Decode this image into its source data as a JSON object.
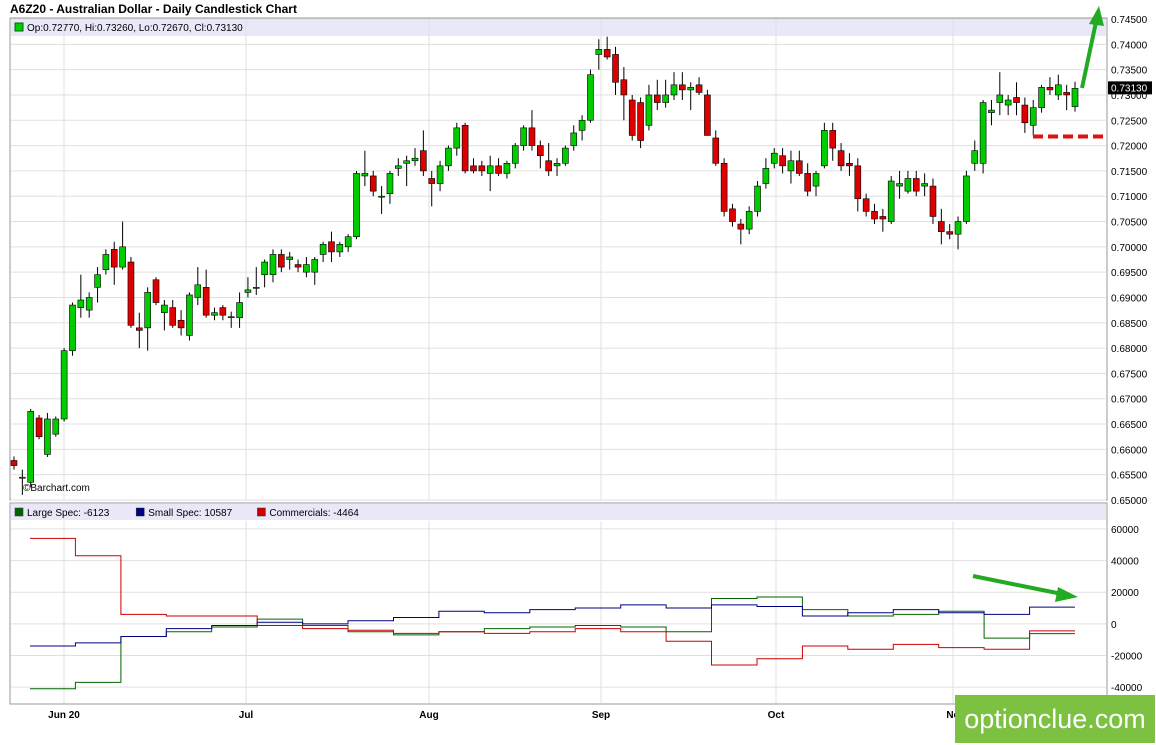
{
  "title": "A6Z20 - Australian Dollar - Daily Candlestick Chart",
  "ohlc_text": "Op:0.72770, Hi:0.73260, Lo:0.72670, Cl:0.73130",
  "last_price_label": "0.73130",
  "watermark": "©Barchart.com",
  "brand": "optionclue.com",
  "colors": {
    "up": "#00cc00",
    "down": "#dd0000",
    "large": "#006400",
    "small": "#000080",
    "commercials": "#cc0000",
    "grid": "#e0e0e0",
    "arrow": "#22aa22",
    "level": "#dd1111"
  },
  "chart_data": [
    {
      "type": "candlestick",
      "title": "A6Z20 - Australian Dollar - Daily Candlestick Chart",
      "ylim": [
        0.65,
        0.745
      ],
      "y_ticks": [
        "0.65000",
        "0.65500",
        "0.66000",
        "0.66500",
        "0.67000",
        "0.67500",
        "0.68000",
        "0.68500",
        "0.69000",
        "0.69500",
        "0.70000",
        "0.70500",
        "0.71000",
        "0.71500",
        "0.72000",
        "0.72500",
        "0.73000",
        "0.73500",
        "0.74000",
        "0.74500"
      ],
      "x_ticks": [
        "Jun 20",
        "Jul",
        "Aug",
        "Sep",
        "Oct",
        "No"
      ],
      "grid": true,
      "last_close": 0.7313,
      "annotations": [
        {
          "type": "arrow-up",
          "color": "green"
        },
        {
          "type": "horizontal-dashed-level",
          "value": 0.7218,
          "color": "red"
        }
      ],
      "candles": [
        {
          "o": 0.6578,
          "h": 0.6586,
          "l": 0.656,
          "c": 0.6568
        },
        {
          "o": 0.6545,
          "h": 0.656,
          "l": 0.651,
          "c": 0.6545
        },
        {
          "o": 0.6535,
          "h": 0.668,
          "l": 0.6525,
          "c": 0.6675
        },
        {
          "o": 0.6662,
          "h": 0.6668,
          "l": 0.662,
          "c": 0.6625
        },
        {
          "o": 0.659,
          "h": 0.6672,
          "l": 0.6585,
          "c": 0.666
        },
        {
          "o": 0.663,
          "h": 0.6665,
          "l": 0.6625,
          "c": 0.666
        },
        {
          "o": 0.666,
          "h": 0.68,
          "l": 0.6655,
          "c": 0.6795
        },
        {
          "o": 0.6795,
          "h": 0.689,
          "l": 0.6785,
          "c": 0.6885
        },
        {
          "o": 0.688,
          "h": 0.6945,
          "l": 0.686,
          "c": 0.6895
        },
        {
          "o": 0.6875,
          "h": 0.691,
          "l": 0.686,
          "c": 0.69
        },
        {
          "o": 0.692,
          "h": 0.696,
          "l": 0.689,
          "c": 0.6945
        },
        {
          "o": 0.6955,
          "h": 0.6995,
          "l": 0.6945,
          "c": 0.6985
        },
        {
          "o": 0.6995,
          "h": 0.701,
          "l": 0.6925,
          "c": 0.696
        },
        {
          "o": 0.696,
          "h": 0.705,
          "l": 0.6955,
          "c": 0.7
        },
        {
          "o": 0.697,
          "h": 0.698,
          "l": 0.684,
          "c": 0.6845
        },
        {
          "o": 0.684,
          "h": 0.687,
          "l": 0.68,
          "c": 0.6835
        },
        {
          "o": 0.684,
          "h": 0.692,
          "l": 0.6795,
          "c": 0.691
        },
        {
          "o": 0.6935,
          "h": 0.694,
          "l": 0.6885,
          "c": 0.689
        },
        {
          "o": 0.687,
          "h": 0.6895,
          "l": 0.6835,
          "c": 0.6885
        },
        {
          "o": 0.688,
          "h": 0.6895,
          "l": 0.684,
          "c": 0.6845
        },
        {
          "o": 0.6855,
          "h": 0.6875,
          "l": 0.6825,
          "c": 0.684
        },
        {
          "o": 0.6825,
          "h": 0.691,
          "l": 0.6815,
          "c": 0.6905
        },
        {
          "o": 0.69,
          "h": 0.696,
          "l": 0.6885,
          "c": 0.6925
        },
        {
          "o": 0.692,
          "h": 0.6955,
          "l": 0.686,
          "c": 0.6865
        },
        {
          "o": 0.6865,
          "h": 0.688,
          "l": 0.6855,
          "c": 0.687
        },
        {
          "o": 0.688,
          "h": 0.6885,
          "l": 0.6855,
          "c": 0.6865
        },
        {
          "o": 0.6862,
          "h": 0.6872,
          "l": 0.684,
          "c": 0.6862
        },
        {
          "o": 0.686,
          "h": 0.691,
          "l": 0.684,
          "c": 0.689
        },
        {
          "o": 0.691,
          "h": 0.694,
          "l": 0.69,
          "c": 0.6915
        },
        {
          "o": 0.692,
          "h": 0.696,
          "l": 0.6905,
          "c": 0.692
        },
        {
          "o": 0.6945,
          "h": 0.6975,
          "l": 0.692,
          "c": 0.697
        },
        {
          "o": 0.6945,
          "h": 0.6995,
          "l": 0.693,
          "c": 0.6985
        },
        {
          "o": 0.6985,
          "h": 0.6995,
          "l": 0.695,
          "c": 0.696
        },
        {
          "o": 0.6975,
          "h": 0.699,
          "l": 0.6955,
          "c": 0.698
        },
        {
          "o": 0.6965,
          "h": 0.6975,
          "l": 0.695,
          "c": 0.696
        },
        {
          "o": 0.695,
          "h": 0.698,
          "l": 0.694,
          "c": 0.6965
        },
        {
          "o": 0.695,
          "h": 0.698,
          "l": 0.6925,
          "c": 0.6975
        },
        {
          "o": 0.6985,
          "h": 0.701,
          "l": 0.697,
          "c": 0.7005
        },
        {
          "o": 0.701,
          "h": 0.703,
          "l": 0.697,
          "c": 0.699
        },
        {
          "o": 0.699,
          "h": 0.701,
          "l": 0.698,
          "c": 0.7005
        },
        {
          "o": 0.7,
          "h": 0.7025,
          "l": 0.699,
          "c": 0.702
        },
        {
          "o": 0.702,
          "h": 0.715,
          "l": 0.7015,
          "c": 0.7145
        },
        {
          "o": 0.714,
          "h": 0.719,
          "l": 0.712,
          "c": 0.7145
        },
        {
          "o": 0.714,
          "h": 0.715,
          "l": 0.71,
          "c": 0.711
        },
        {
          "o": 0.71,
          "h": 0.712,
          "l": 0.7065,
          "c": 0.71
        },
        {
          "o": 0.7105,
          "h": 0.715,
          "l": 0.7085,
          "c": 0.7145
        },
        {
          "o": 0.7155,
          "h": 0.7175,
          "l": 0.714,
          "c": 0.716
        },
        {
          "o": 0.7165,
          "h": 0.718,
          "l": 0.712,
          "c": 0.717
        },
        {
          "o": 0.717,
          "h": 0.7195,
          "l": 0.716,
          "c": 0.7175
        },
        {
          "o": 0.719,
          "h": 0.723,
          "l": 0.714,
          "c": 0.715
        },
        {
          "o": 0.7135,
          "h": 0.715,
          "l": 0.708,
          "c": 0.7125
        },
        {
          "o": 0.7125,
          "h": 0.717,
          "l": 0.711,
          "c": 0.716
        },
        {
          "o": 0.716,
          "h": 0.72,
          "l": 0.715,
          "c": 0.7195
        },
        {
          "o": 0.7195,
          "h": 0.7245,
          "l": 0.718,
          "c": 0.7235
        },
        {
          "o": 0.724,
          "h": 0.7245,
          "l": 0.7145,
          "c": 0.715
        },
        {
          "o": 0.716,
          "h": 0.7175,
          "l": 0.7145,
          "c": 0.715
        },
        {
          "o": 0.716,
          "h": 0.717,
          "l": 0.714,
          "c": 0.715
        },
        {
          "o": 0.7145,
          "h": 0.718,
          "l": 0.711,
          "c": 0.716
        },
        {
          "o": 0.716,
          "h": 0.7175,
          "l": 0.714,
          "c": 0.7145
        },
        {
          "o": 0.7145,
          "h": 0.717,
          "l": 0.7135,
          "c": 0.7165
        },
        {
          "o": 0.7165,
          "h": 0.7205,
          "l": 0.7155,
          "c": 0.72
        },
        {
          "o": 0.72,
          "h": 0.724,
          "l": 0.719,
          "c": 0.7235
        },
        {
          "o": 0.7235,
          "h": 0.727,
          "l": 0.719,
          "c": 0.72
        },
        {
          "o": 0.72,
          "h": 0.721,
          "l": 0.7155,
          "c": 0.718
        },
        {
          "o": 0.717,
          "h": 0.7205,
          "l": 0.714,
          "c": 0.715
        },
        {
          "o": 0.716,
          "h": 0.7175,
          "l": 0.714,
          "c": 0.7165
        },
        {
          "o": 0.7165,
          "h": 0.72,
          "l": 0.716,
          "c": 0.7195
        },
        {
          "o": 0.72,
          "h": 0.724,
          "l": 0.719,
          "c": 0.7225
        },
        {
          "o": 0.723,
          "h": 0.726,
          "l": 0.721,
          "c": 0.725
        },
        {
          "o": 0.725,
          "h": 0.735,
          "l": 0.7245,
          "c": 0.734
        },
        {
          "o": 0.738,
          "h": 0.741,
          "l": 0.735,
          "c": 0.739
        },
        {
          "o": 0.739,
          "h": 0.7415,
          "l": 0.737,
          "c": 0.7375
        },
        {
          "o": 0.738,
          "h": 0.7395,
          "l": 0.73,
          "c": 0.7325
        },
        {
          "o": 0.733,
          "h": 0.7355,
          "l": 0.725,
          "c": 0.73
        },
        {
          "o": 0.729,
          "h": 0.73,
          "l": 0.721,
          "c": 0.722
        },
        {
          "o": 0.7285,
          "h": 0.7295,
          "l": 0.7195,
          "c": 0.721
        },
        {
          "o": 0.724,
          "h": 0.732,
          "l": 0.723,
          "c": 0.73
        },
        {
          "o": 0.73,
          "h": 0.733,
          "l": 0.727,
          "c": 0.7285
        },
        {
          "o": 0.7285,
          "h": 0.733,
          "l": 0.7275,
          "c": 0.73
        },
        {
          "o": 0.73,
          "h": 0.7345,
          "l": 0.729,
          "c": 0.732
        },
        {
          "o": 0.732,
          "h": 0.7345,
          "l": 0.729,
          "c": 0.731
        },
        {
          "o": 0.731,
          "h": 0.7325,
          "l": 0.727,
          "c": 0.7315
        },
        {
          "o": 0.732,
          "h": 0.7335,
          "l": 0.73,
          "c": 0.7305
        },
        {
          "o": 0.73,
          "h": 0.731,
          "l": 0.722,
          "c": 0.722
        },
        {
          "o": 0.7215,
          "h": 0.723,
          "l": 0.716,
          "c": 0.7165
        },
        {
          "o": 0.7165,
          "h": 0.7175,
          "l": 0.706,
          "c": 0.707
        },
        {
          "o": 0.7075,
          "h": 0.7085,
          "l": 0.704,
          "c": 0.705
        },
        {
          "o": 0.7045,
          "h": 0.7055,
          "l": 0.7005,
          "c": 0.7035
        },
        {
          "o": 0.7035,
          "h": 0.708,
          "l": 0.7025,
          "c": 0.707
        },
        {
          "o": 0.707,
          "h": 0.713,
          "l": 0.706,
          "c": 0.712
        },
        {
          "o": 0.7125,
          "h": 0.7175,
          "l": 0.7115,
          "c": 0.7155
        },
        {
          "o": 0.7165,
          "h": 0.7195,
          "l": 0.7155,
          "c": 0.7185
        },
        {
          "o": 0.718,
          "h": 0.7195,
          "l": 0.7145,
          "c": 0.716
        },
        {
          "o": 0.715,
          "h": 0.719,
          "l": 0.7125,
          "c": 0.717
        },
        {
          "o": 0.717,
          "h": 0.719,
          "l": 0.714,
          "c": 0.7145
        },
        {
          "o": 0.7145,
          "h": 0.7165,
          "l": 0.71,
          "c": 0.711
        },
        {
          "o": 0.712,
          "h": 0.715,
          "l": 0.71,
          "c": 0.7145
        },
        {
          "o": 0.716,
          "h": 0.7245,
          "l": 0.7155,
          "c": 0.723
        },
        {
          "o": 0.723,
          "h": 0.7245,
          "l": 0.717,
          "c": 0.7195
        },
        {
          "o": 0.719,
          "h": 0.7205,
          "l": 0.715,
          "c": 0.716
        },
        {
          "o": 0.7165,
          "h": 0.7185,
          "l": 0.714,
          "c": 0.716
        },
        {
          "o": 0.716,
          "h": 0.7175,
          "l": 0.707,
          "c": 0.7095
        },
        {
          "o": 0.7095,
          "h": 0.7105,
          "l": 0.706,
          "c": 0.707
        },
        {
          "o": 0.707,
          "h": 0.7085,
          "l": 0.7045,
          "c": 0.7055
        },
        {
          "o": 0.706,
          "h": 0.7075,
          "l": 0.703,
          "c": 0.7055
        },
        {
          "o": 0.705,
          "h": 0.714,
          "l": 0.7045,
          "c": 0.713
        },
        {
          "o": 0.712,
          "h": 0.715,
          "l": 0.7095,
          "c": 0.7125
        },
        {
          "o": 0.711,
          "h": 0.715,
          "l": 0.7105,
          "c": 0.7135
        },
        {
          "o": 0.7135,
          "h": 0.715,
          "l": 0.71,
          "c": 0.711
        },
        {
          "o": 0.712,
          "h": 0.7145,
          "l": 0.71,
          "c": 0.7125
        },
        {
          "o": 0.712,
          "h": 0.7135,
          "l": 0.7045,
          "c": 0.706
        },
        {
          "o": 0.705,
          "h": 0.7075,
          "l": 0.7005,
          "c": 0.703
        },
        {
          "o": 0.703,
          "h": 0.7045,
          "l": 0.7015,
          "c": 0.7025
        },
        {
          "o": 0.7025,
          "h": 0.706,
          "l": 0.6995,
          "c": 0.705
        },
        {
          "o": 0.705,
          "h": 0.715,
          "l": 0.7045,
          "c": 0.714
        },
        {
          "o": 0.7165,
          "h": 0.721,
          "l": 0.715,
          "c": 0.719
        },
        {
          "o": 0.7165,
          "h": 0.729,
          "l": 0.7145,
          "c": 0.7285
        },
        {
          "o": 0.7265,
          "h": 0.729,
          "l": 0.724,
          "c": 0.727
        },
        {
          "o": 0.7285,
          "h": 0.7345,
          "l": 0.726,
          "c": 0.73
        },
        {
          "o": 0.728,
          "h": 0.73,
          "l": 0.726,
          "c": 0.729
        },
        {
          "o": 0.7295,
          "h": 0.7325,
          "l": 0.726,
          "c": 0.7285
        },
        {
          "o": 0.728,
          "h": 0.7295,
          "l": 0.7225,
          "c": 0.7245
        },
        {
          "o": 0.724,
          "h": 0.729,
          "l": 0.722,
          "c": 0.7275
        },
        {
          "o": 0.7275,
          "h": 0.732,
          "l": 0.7265,
          "c": 0.7315
        },
        {
          "o": 0.7315,
          "h": 0.7335,
          "l": 0.73,
          "c": 0.731
        },
        {
          "o": 0.73,
          "h": 0.734,
          "l": 0.729,
          "c": 0.732
        },
        {
          "o": 0.7305,
          "h": 0.732,
          "l": 0.727,
          "c": 0.73
        },
        {
          "o": 0.7277,
          "h": 0.7326,
          "l": 0.7267,
          "c": 0.7313
        }
      ]
    },
    {
      "type": "line",
      "subtype": "step",
      "ylim": [
        -50000,
        65000
      ],
      "y_ticks": [
        "-40000",
        "-20000",
        "0",
        "20000",
        "40000",
        "60000"
      ],
      "x_ticks": [
        "Jun 20",
        "Jul",
        "Aug",
        "Sep",
        "Oct",
        "No"
      ],
      "grid": true,
      "annotations": [
        {
          "type": "arrow-down-right",
          "color": "green"
        }
      ],
      "series": [
        {
          "name": "Large Spec",
          "legend": "Large Spec: -6123",
          "color": "#006400",
          "values": [
            -41000,
            -37000,
            -8000,
            -5000,
            -2000,
            3000,
            -1000,
            -5000,
            -7000,
            -5000,
            -3000,
            -2000,
            -1000,
            -2000,
            -5000,
            16000,
            17000,
            9000,
            5000,
            6000,
            8000,
            -9000,
            -6123
          ]
        },
        {
          "name": "Small Spec",
          "legend": "Small Spec: 10587",
          "color": "#000080",
          "values": [
            -14000,
            -12000,
            -8000,
            -3000,
            -1000,
            1000,
            0,
            2000,
            4000,
            8000,
            7000,
            9000,
            10000,
            12000,
            10000,
            12000,
            11000,
            5000,
            7000,
            9000,
            7000,
            6000,
            10587
          ]
        },
        {
          "name": "Commercials",
          "legend": "Commercials: -4464",
          "color": "#cc0000",
          "values": [
            54000,
            43000,
            6000,
            5000,
            5000,
            -1000,
            -3000,
            -4000,
            -6000,
            -5000,
            -6000,
            -5000,
            -3000,
            -5000,
            -11000,
            -26000,
            -22000,
            -14000,
            -16000,
            -13000,
            -15000,
            -16000,
            -4464
          ]
        }
      ]
    }
  ]
}
